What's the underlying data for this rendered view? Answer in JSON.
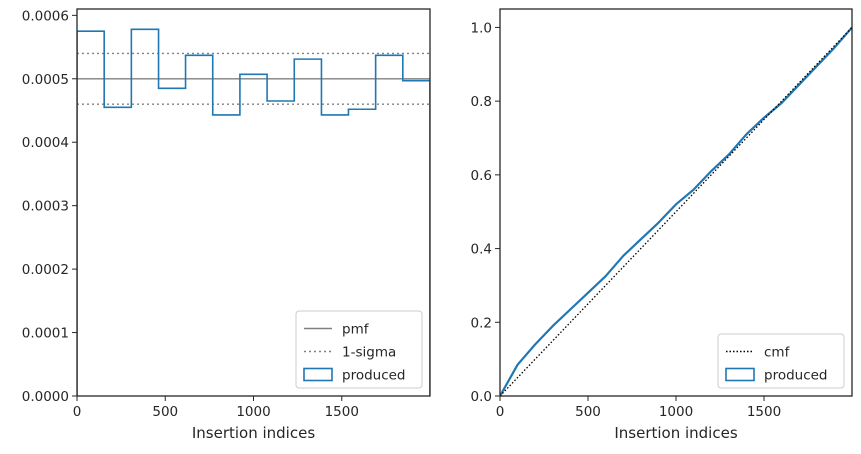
{
  "chart_data": [
    {
      "type": "step",
      "title": "",
      "xlabel": "Insertion indices",
      "ylabel": "",
      "xlim": [
        0,
        2000
      ],
      "ylim": [
        0,
        0.00061
      ],
      "xticks": [
        "0",
        "500",
        "1000",
        "1500"
      ],
      "xtick_values": [
        0,
        500,
        1000,
        1500
      ],
      "yticks": [
        "0.0000",
        "0.0001",
        "0.0002",
        "0.0003",
        "0.0004",
        "0.0005",
        "0.0006"
      ],
      "ytick_values": [
        0,
        0.0001,
        0.0002,
        0.0003,
        0.0004,
        0.0005,
        0.0006
      ],
      "grid": false,
      "legend_position": "bottom-right",
      "legend": [
        "pmf",
        "1-sigma",
        "produced"
      ],
      "pmf": 0.0005,
      "sigma_band": [
        0.00046,
        0.00054
      ],
      "produced": {
        "bin_edges": [
          0,
          154,
          308,
          462,
          615,
          769,
          923,
          1077,
          1231,
          1385,
          1538,
          1692,
          1846,
          2000
        ],
        "values": [
          0.000575,
          0.000455,
          0.000578,
          0.000485,
          0.000537,
          0.000443,
          0.000507,
          0.000465,
          0.000531,
          0.000443,
          0.000452,
          0.000537,
          0.000497
        ]
      },
      "colors": {
        "pmf": "#808080",
        "sigma": "#808080",
        "produced": "#1f77b4"
      }
    },
    {
      "type": "line",
      "title": "",
      "xlabel": "Insertion indices",
      "ylabel": "",
      "xlim": [
        0,
        2000
      ],
      "ylim": [
        0,
        1.05
      ],
      "xticks": [
        "0",
        "500",
        "1000",
        "1500"
      ],
      "xtick_values": [
        0,
        500,
        1000,
        1500
      ],
      "yticks": [
        "0.0",
        "0.2",
        "0.4",
        "0.6",
        "0.8",
        "1.0"
      ],
      "ytick_values": [
        0,
        0.2,
        0.4,
        0.6,
        0.8,
        1.0
      ],
      "grid": false,
      "legend_position": "bottom-right",
      "legend": [
        "cmf",
        "produced"
      ],
      "cmf": {
        "x": [
          0,
          2000
        ],
        "y": [
          0,
          1.0
        ]
      },
      "produced": {
        "x": [
          0,
          100,
          200,
          300,
          400,
          500,
          600,
          700,
          800,
          900,
          1000,
          1100,
          1200,
          1300,
          1400,
          1500,
          1600,
          1700,
          1800,
          1900,
          2000
        ],
        "y": [
          0,
          0.085,
          0.14,
          0.19,
          0.235,
          0.28,
          0.325,
          0.38,
          0.425,
          0.47,
          0.52,
          0.56,
          0.61,
          0.655,
          0.71,
          0.755,
          0.795,
          0.845,
          0.895,
          0.945,
          1.0
        ]
      },
      "colors": {
        "cmf": "#000000",
        "produced": "#1f77b4"
      }
    }
  ]
}
